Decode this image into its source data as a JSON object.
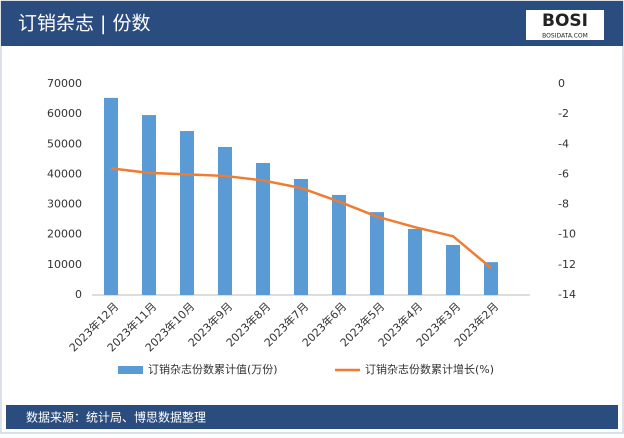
{
  "header": {
    "title": "订销杂志 | 份数",
    "logo": "BOSI",
    "logo_sub": "BOSIDATA.COM"
  },
  "chart_data": {
    "type": "bar",
    "categories": [
      "2023年12月",
      "2023年11月",
      "2023年10月",
      "2023年9月",
      "2023年8月",
      "2023年7月",
      "2023年6月",
      "2023年5月",
      "2023年4月",
      "2023年3月",
      "2023年2月"
    ],
    "series": [
      {
        "name": "订销杂志份数累计值(万份)",
        "type": "bar",
        "color": "#5b9bd5",
        "axis": "y",
        "values": [
          65400,
          59700,
          54400,
          49100,
          43800,
          38500,
          33200,
          27500,
          21900,
          16600,
          10900
        ]
      },
      {
        "name": "订销杂志份数累计增长(%)",
        "type": "line",
        "color": "#ed7d31",
        "axis": "y2",
        "values": [
          -5.6,
          -5.9,
          -6.0,
          -6.1,
          -6.4,
          -6.9,
          -7.8,
          -8.8,
          -9.5,
          -10.1,
          -12.2
        ]
      }
    ],
    "ylim": [
      0,
      70000
    ],
    "yticks": [
      0,
      10000,
      20000,
      30000,
      40000,
      50000,
      60000,
      70000
    ],
    "y2lim": [
      -14,
      0
    ],
    "y2ticks": [
      0,
      -2,
      -4,
      -6,
      -8,
      -10,
      -12,
      -14
    ],
    "grid": false
  },
  "footer": {
    "source": "数据来源：统计局、博思数据整理"
  }
}
